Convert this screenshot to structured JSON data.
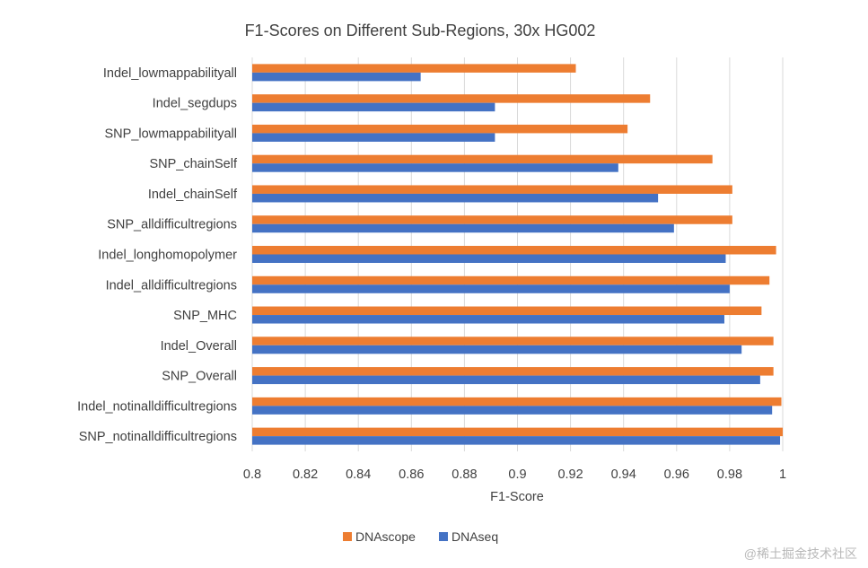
{
  "chart_data": {
    "type": "bar",
    "orientation": "horizontal",
    "title": "F1-Scores on Different Sub-Regions, 30x HG002",
    "xlabel": "F1-Score",
    "ylabel": "",
    "xlim": [
      0.8,
      1.0
    ],
    "xticks": [
      "0.8",
      "0.82",
      "0.84",
      "0.86",
      "0.88",
      "0.9",
      "0.92",
      "0.94",
      "0.96",
      "0.98",
      "1"
    ],
    "grid": true,
    "legend_position": "bottom",
    "categories": [
      "Indel_lowmappabilityall",
      "Indel_segdups",
      "SNP_lowmappabilityall",
      "SNP_chainSelf",
      "Indel_chainSelf",
      "SNP_alldifficultregions",
      "Indel_longhomopolymer",
      "Indel_alldifficultregions",
      "SNP_MHC",
      "Indel_Overall",
      "SNP_Overall",
      "Indel_notinalldifficultregions",
      "SNP_notinalldifficultregions"
    ],
    "series": [
      {
        "name": "DNAscope",
        "color": "#ED7D31",
        "values": [
          0.922,
          0.95,
          0.9415,
          0.9735,
          0.981,
          0.981,
          0.9975,
          0.995,
          0.992,
          0.9965,
          0.9965,
          0.9995,
          1.0
        ]
      },
      {
        "name": "DNAseq",
        "color": "#4472C4",
        "values": [
          0.8635,
          0.8915,
          0.8915,
          0.938,
          0.953,
          0.959,
          0.9785,
          0.98,
          0.978,
          0.9845,
          0.9915,
          0.996,
          0.999
        ]
      }
    ]
  },
  "watermark": "@稀土掘金技术社区"
}
